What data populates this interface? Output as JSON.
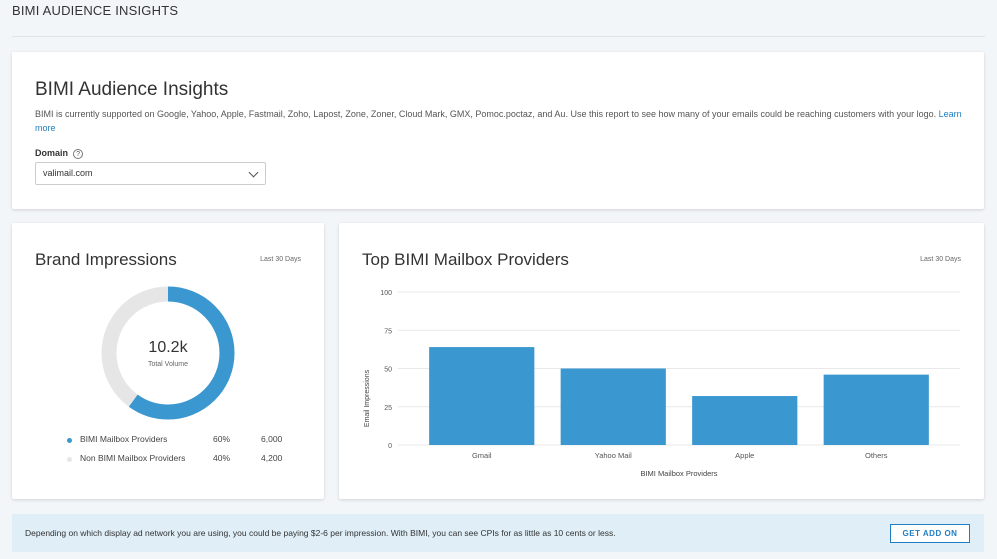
{
  "header": {
    "title": "BIMI AUDIENCE INSIGHTS"
  },
  "intro": {
    "title": "BIMI Audience Insights",
    "description": "BIMI is currently supported on Google, Yahoo, Apple, Fastmail, Zoho, Lapost, Zone, Zoner, Cloud Mark, GMX, Pomoc.poctaz, and Au. Use this report to see how many of your emails could be reaching customers with your logo.",
    "learn_more": "Learn more",
    "domain_label": "Domain",
    "help_icon": "question-circle-icon",
    "domain_value": "valimail.com"
  },
  "brand": {
    "title": "Brand Impressions",
    "period": "Last 30 Days",
    "total": "10.2k",
    "total_label": "Total Volume",
    "legend": [
      {
        "name": "BIMI Mailbox Providers",
        "percent": "60%",
        "value": "6,000",
        "pct": 60,
        "color": "#3a97cf"
      },
      {
        "name": "Non BIMI Mailbox Providers",
        "percent": "40%",
        "value": "4,200",
        "pct": 40,
        "color": "#e6e6e6"
      }
    ]
  },
  "providers": {
    "title": "Top BIMI Mailbox Providers",
    "period": "Last 30 Days"
  },
  "chart_data": {
    "type": "bar",
    "categories": [
      "Gmail",
      "Yahoo Mail",
      "Apple",
      "Others"
    ],
    "values": [
      64,
      50,
      32,
      46
    ],
    "xlabel": "BIMI Mailbox Providers",
    "ylabel": "Email Impressions",
    "ylim": [
      0,
      100
    ],
    "yticks": [
      "0",
      "25",
      "50",
      "75",
      "100"
    ],
    "grid": true,
    "color": "#3a97cf"
  },
  "banner": {
    "text": "Depending on which display ad network you are using, you could be paying $2-6 per impression. With BIMI, you can see CPIs for as little as 10 cents or less.",
    "button": "GET ADD ON"
  }
}
